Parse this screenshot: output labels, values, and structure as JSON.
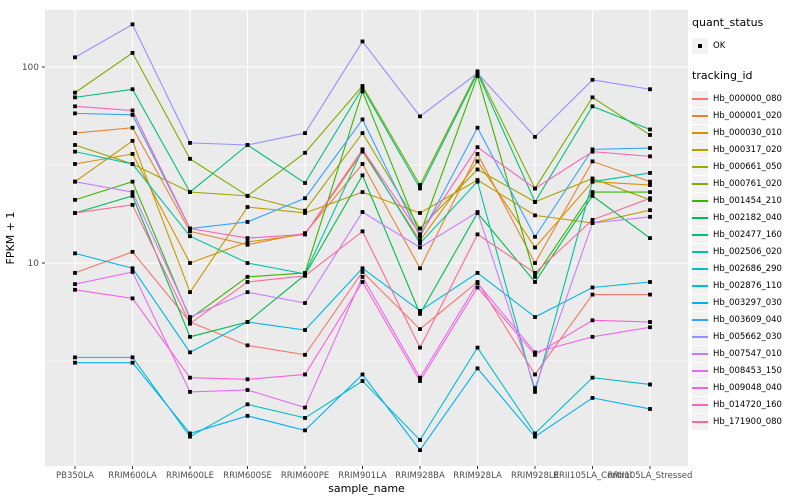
{
  "figure": {
    "background": "#FFFFFF",
    "panel_background": "#EBEBEB",
    "grid_color": "#FFFFFF",
    "tick_label_color": "#4D4D4D",
    "title_color": "#000000",
    "marker_color": "#000000"
  },
  "axes": {
    "ylabel": "FPKM + 1",
    "xlabel": "sample_name",
    "y_scale": "log10",
    "y_tick_labels": [
      "100",
      "10"
    ]
  },
  "legend": {
    "quant_status_title": "quant_status",
    "ok_label": "OK",
    "tracking_title": "tracking_id"
  },
  "chart_data": {
    "type": "line",
    "title": "",
    "xlabel": "sample_name",
    "ylabel": "FPKM + 1",
    "y_scale": "log10",
    "ylim": [
      0.9,
      200
    ],
    "yticks": [
      10,
      100
    ],
    "minor_gridlines": [
      3.162,
      31.62
    ],
    "grid": true,
    "legend_position": "right",
    "marker": "black-square",
    "categories": [
      "PB350LA",
      "RRIM600LA",
      "RRIM600LE",
      "RRIM600SE",
      "RRIM600PE",
      "RRIM901LA",
      "RRIM928BA",
      "RRIM928LA",
      "RRIM928LE",
      "RRII105LA_Control",
      "RRII105LA_Stressed"
    ],
    "series": [
      {
        "name": "Hb_000000_080",
        "color": "#F8766D",
        "values": [
          8.9,
          11.4,
          5.0,
          3.8,
          3.4,
          9.0,
          4.6,
          8.0,
          2.7,
          6.9,
          6.9
        ]
      },
      {
        "name": "Hb_000001_020",
        "color": "#EA8331",
        "values": [
          46,
          49,
          14.5,
          12.4,
          14.2,
          32,
          9.4,
          36,
          10,
          33,
          26
        ]
      },
      {
        "name": "Hb_000030_010",
        "color": "#D89000",
        "values": [
          32,
          36,
          10,
          12.8,
          14,
          37,
          13,
          33,
          12,
          26,
          25
        ]
      },
      {
        "name": "Hb_000317_020",
        "color": "#C09B00",
        "values": [
          26,
          42,
          7.1,
          19.3,
          18,
          23,
          18,
          26.5,
          17.5,
          16,
          18.6
        ]
      },
      {
        "name": "Hb_000661_050",
        "color": "#A3A500",
        "values": [
          40,
          32,
          23,
          22,
          18.5,
          46,
          15,
          30,
          20.5,
          27,
          21
        ]
      },
      {
        "name": "Hb_000761_020",
        "color": "#7CAE00",
        "values": [
          74,
          118,
          34,
          22,
          36.5,
          80,
          25,
          95,
          24,
          70,
          45
        ]
      },
      {
        "name": "Hb_001454_210",
        "color": "#39B600",
        "values": [
          21,
          26,
          5.2,
          8.5,
          8.9,
          75,
          14,
          90,
          8.5,
          23,
          23
        ]
      },
      {
        "name": "Hb_002182_040",
        "color": "#00BB4E",
        "values": [
          18,
          22,
          4.2,
          5.0,
          8.7,
          28,
          5.5,
          18,
          8.0,
          22,
          13.4
        ]
      },
      {
        "name": "Hb_002477_160",
        "color": "#00BF7D",
        "values": [
          70,
          77,
          23,
          40,
          25.6,
          78,
          24,
          93,
          20.5,
          63,
          48
        ]
      },
      {
        "name": "Hb_002506_020",
        "color": "#00C1A3",
        "values": [
          37,
          32,
          13.7,
          10,
          8.8,
          38,
          12.6,
          26,
          2.2,
          26,
          28.8
        ]
      },
      {
        "name": "Hb_002686_290",
        "color": "#00BFC4",
        "values": [
          3.3,
          3.3,
          1.3,
          1.9,
          1.62,
          2.5,
          1.25,
          3.7,
          1.35,
          2.6,
          2.4
        ]
      },
      {
        "name": "Hb_002876_110",
        "color": "#00BAE0",
        "values": [
          11.2,
          9.4,
          3.5,
          5.0,
          4.55,
          9.4,
          5.7,
          8.9,
          5.3,
          7.5,
          8.0
        ]
      },
      {
        "name": "Hb_003297_030",
        "color": "#00B0F6",
        "values": [
          3.1,
          3.1,
          1.35,
          1.66,
          1.4,
          2.7,
          1.11,
          2.9,
          1.3,
          2.05,
          1.8
        ]
      },
      {
        "name": "Hb_003609_040",
        "color": "#35A2FF",
        "values": [
          58,
          57,
          15,
          16.2,
          21.4,
          54,
          13.6,
          49,
          13.6,
          38,
          38.6
        ]
      },
      {
        "name": "Hb_005662_030",
        "color": "#9590FF",
        "values": [
          112,
          165,
          41,
          40,
          46,
          135,
          56,
          93,
          44,
          86,
          77
        ]
      },
      {
        "name": "Hb_007547_010",
        "color": "#C77CFF",
        "values": [
          26,
          23,
          5.3,
          7.1,
          6.25,
          18.2,
          12,
          18.2,
          2.3,
          16,
          17.2
        ]
      },
      {
        "name": "Hb_008453_150",
        "color": "#E76BF3",
        "values": [
          7.8,
          9.0,
          2.2,
          2.25,
          1.83,
          8.5,
          2.6,
          7.9,
          3.5,
          4.2,
          4.7
        ]
      },
      {
        "name": "Hb_009048_040",
        "color": "#FA62DB",
        "values": [
          7.3,
          6.6,
          2.6,
          2.55,
          2.7,
          8.0,
          2.5,
          7.5,
          3.4,
          5.1,
          5.0
        ]
      },
      {
        "name": "Hb_014720_160",
        "color": "#FF62BC",
        "values": [
          63,
          60,
          15,
          13.4,
          14,
          38,
          14,
          39,
          24,
          37,
          35
        ]
      },
      {
        "name": "Hb_171900_080",
        "color": "#FF6A98",
        "values": [
          18,
          19.8,
          4.9,
          8.0,
          8.6,
          14.5,
          3.7,
          14,
          8.9,
          16.6,
          21.4
        ]
      }
    ]
  }
}
